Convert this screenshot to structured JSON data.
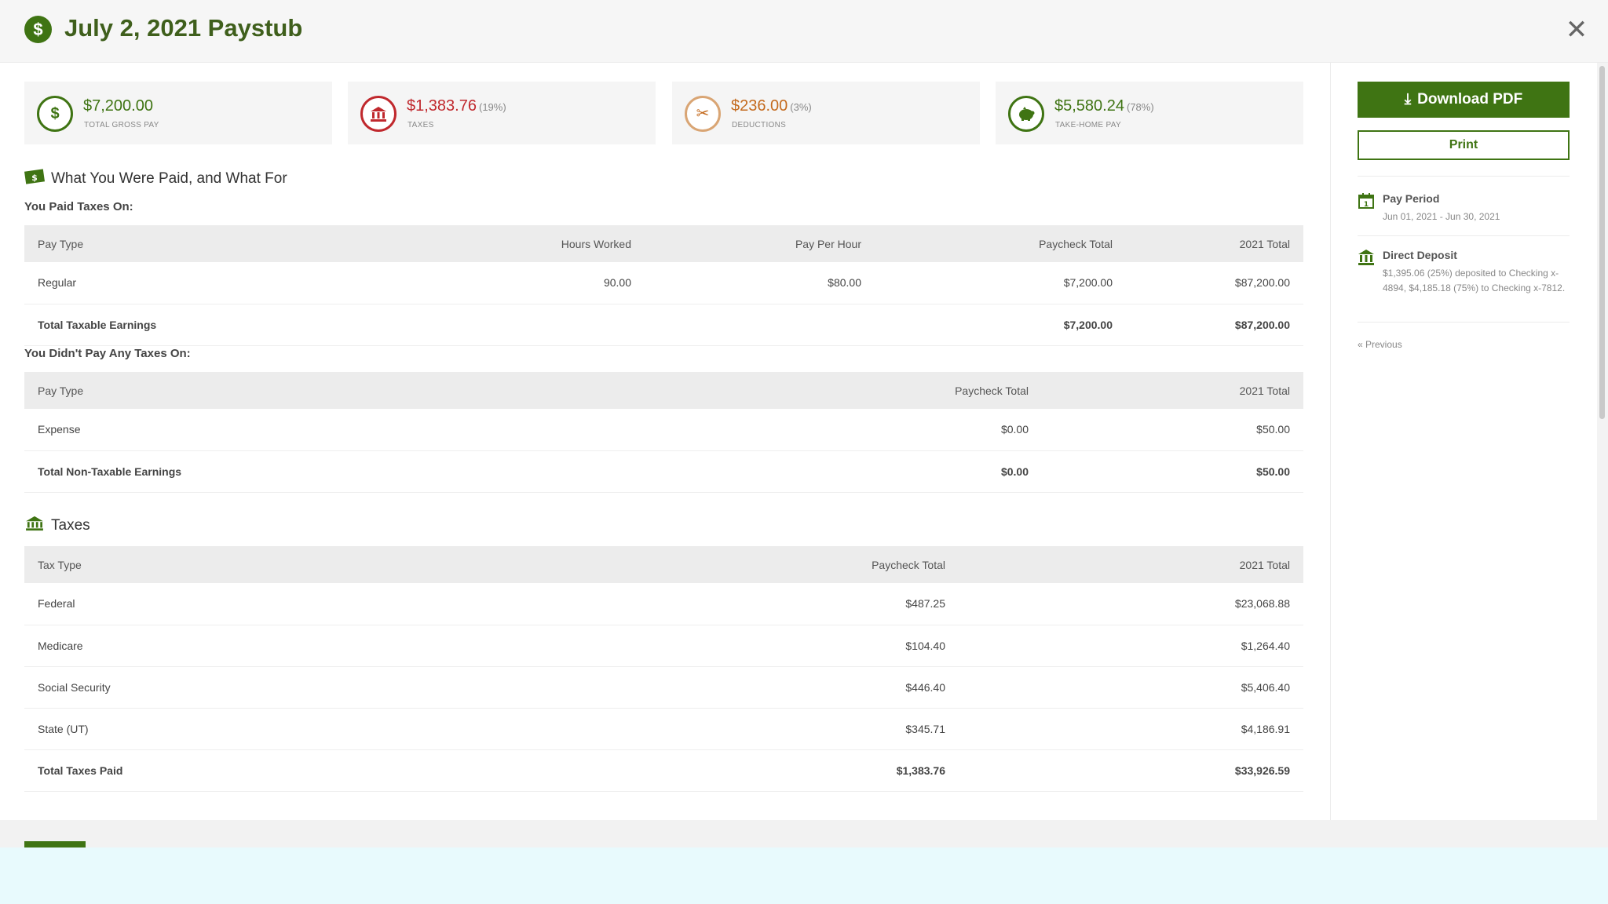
{
  "header": {
    "title": "July 2, 2021 Paystub",
    "title_icon": "dollar-circle-icon",
    "close_label": "✕"
  },
  "summary": [
    {
      "amount": "$7,200.00",
      "pct": "",
      "label": "TOTAL GROSS PAY",
      "icon": "money-icon",
      "color": "#3f7413"
    },
    {
      "amount": "$1,383.76",
      "pct": "(19%)",
      "label": "TAXES",
      "icon": "bank-icon",
      "color": "#c0282d"
    },
    {
      "amount": "$236.00",
      "pct": "(3%)",
      "label": "DEDUCTIONS",
      "icon": "scissors-icon",
      "color": "#c46a1e"
    },
    {
      "amount": "$5,580.24",
      "pct": "(78%)",
      "label": "TAKE-HOME PAY",
      "icon": "piggy-bank-icon",
      "color": "#3f7413"
    }
  ],
  "paid_section": {
    "title": "What You Were Paid, and What For",
    "taxed_heading": "You Paid Taxes On:",
    "taxed_columns": [
      "Pay Type",
      "Hours Worked",
      "Pay Per Hour",
      "Paycheck Total",
      "2021 Total"
    ],
    "taxed_rows": [
      {
        "type": "Regular",
        "hours": "90.00",
        "rate": "$80.00",
        "paycheck": "$7,200.00",
        "ytd": "$87,200.00"
      }
    ],
    "taxed_total": {
      "label": "Total Taxable Earnings",
      "paycheck": "$7,200.00",
      "ytd": "$87,200.00"
    },
    "nontaxed_heading": "You Didn't Pay Any Taxes On:",
    "nontaxed_columns": [
      "Pay Type",
      "Paycheck Total",
      "2021 Total"
    ],
    "nontaxed_rows": [
      {
        "type": "Expense",
        "paycheck": "$0.00",
        "ytd": "$50.00"
      }
    ],
    "nontaxed_total": {
      "label": "Total Non-Taxable Earnings",
      "paycheck": "$0.00",
      "ytd": "$50.00"
    }
  },
  "taxes_section": {
    "title": "Taxes",
    "columns": [
      "Tax Type",
      "Paycheck Total",
      "2021 Total"
    ],
    "rows": [
      {
        "type": "Federal",
        "paycheck": "$487.25",
        "ytd": "$23,068.88"
      },
      {
        "type": "Medicare",
        "paycheck": "$104.40",
        "ytd": "$1,264.40"
      },
      {
        "type": "Social Security",
        "paycheck": "$446.40",
        "ytd": "$5,406.40"
      },
      {
        "type": "State (UT)",
        "paycheck": "$345.71",
        "ytd": "$4,186.91"
      }
    ],
    "total": {
      "label": "Total Taxes Paid",
      "paycheck": "$1,383.76",
      "ytd": "$33,926.59"
    }
  },
  "sidebar": {
    "download_label": "Download PDF",
    "print_label": "Print",
    "pay_period": {
      "title": "Pay Period",
      "value": "Jun 01, 2021 - Jun 30, 2021"
    },
    "direct_deposit": {
      "title": "Direct Deposit",
      "value": "$1,395.06 (25%) deposited to Checking x-4894, $4,185.18 (75%) to Checking x-7812."
    },
    "previous_label": "« Previous"
  }
}
